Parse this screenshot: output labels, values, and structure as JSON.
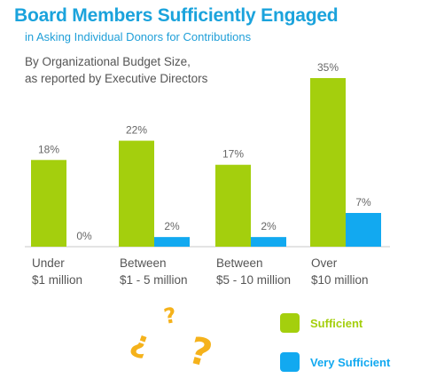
{
  "chart_data": {
    "type": "bar",
    "title": "Board Members Sufficiently Engaged",
    "subtitle": "in Asking Individual Donors for Contributions",
    "note_lines": [
      "By Organizational Budget Size,",
      "as reported by Executive Directors"
    ],
    "categories": [
      [
        "Under",
        "$1 million"
      ],
      [
        "Between",
        "$1 - 5 million"
      ],
      [
        "Between",
        "$5 - 10 million"
      ],
      [
        "Over",
        "$10 million"
      ]
    ],
    "series": [
      {
        "name": "Sufficient",
        "values": [
          18,
          22,
          17,
          35
        ],
        "labels": [
          "18%",
          "22%",
          "17%",
          "35%"
        ],
        "color": "#a4cf0d"
      },
      {
        "name": "Very Sufficient",
        "values": [
          0,
          2,
          2,
          7
        ],
        "labels": [
          "0%",
          "2%",
          "2%",
          "7%"
        ],
        "color": "#12a9f0"
      }
    ],
    "ylim": [
      0,
      35
    ],
    "xlabel": "",
    "ylabel": "",
    "grid": false,
    "legend_position": "bottom-right"
  },
  "legend_text_colors": {
    "sufficient": "#a4cf0d",
    "very_sufficient": "#12a9f0"
  },
  "decoration": {
    "mark_glyph": "?",
    "mark_color": "#f5b21b"
  }
}
